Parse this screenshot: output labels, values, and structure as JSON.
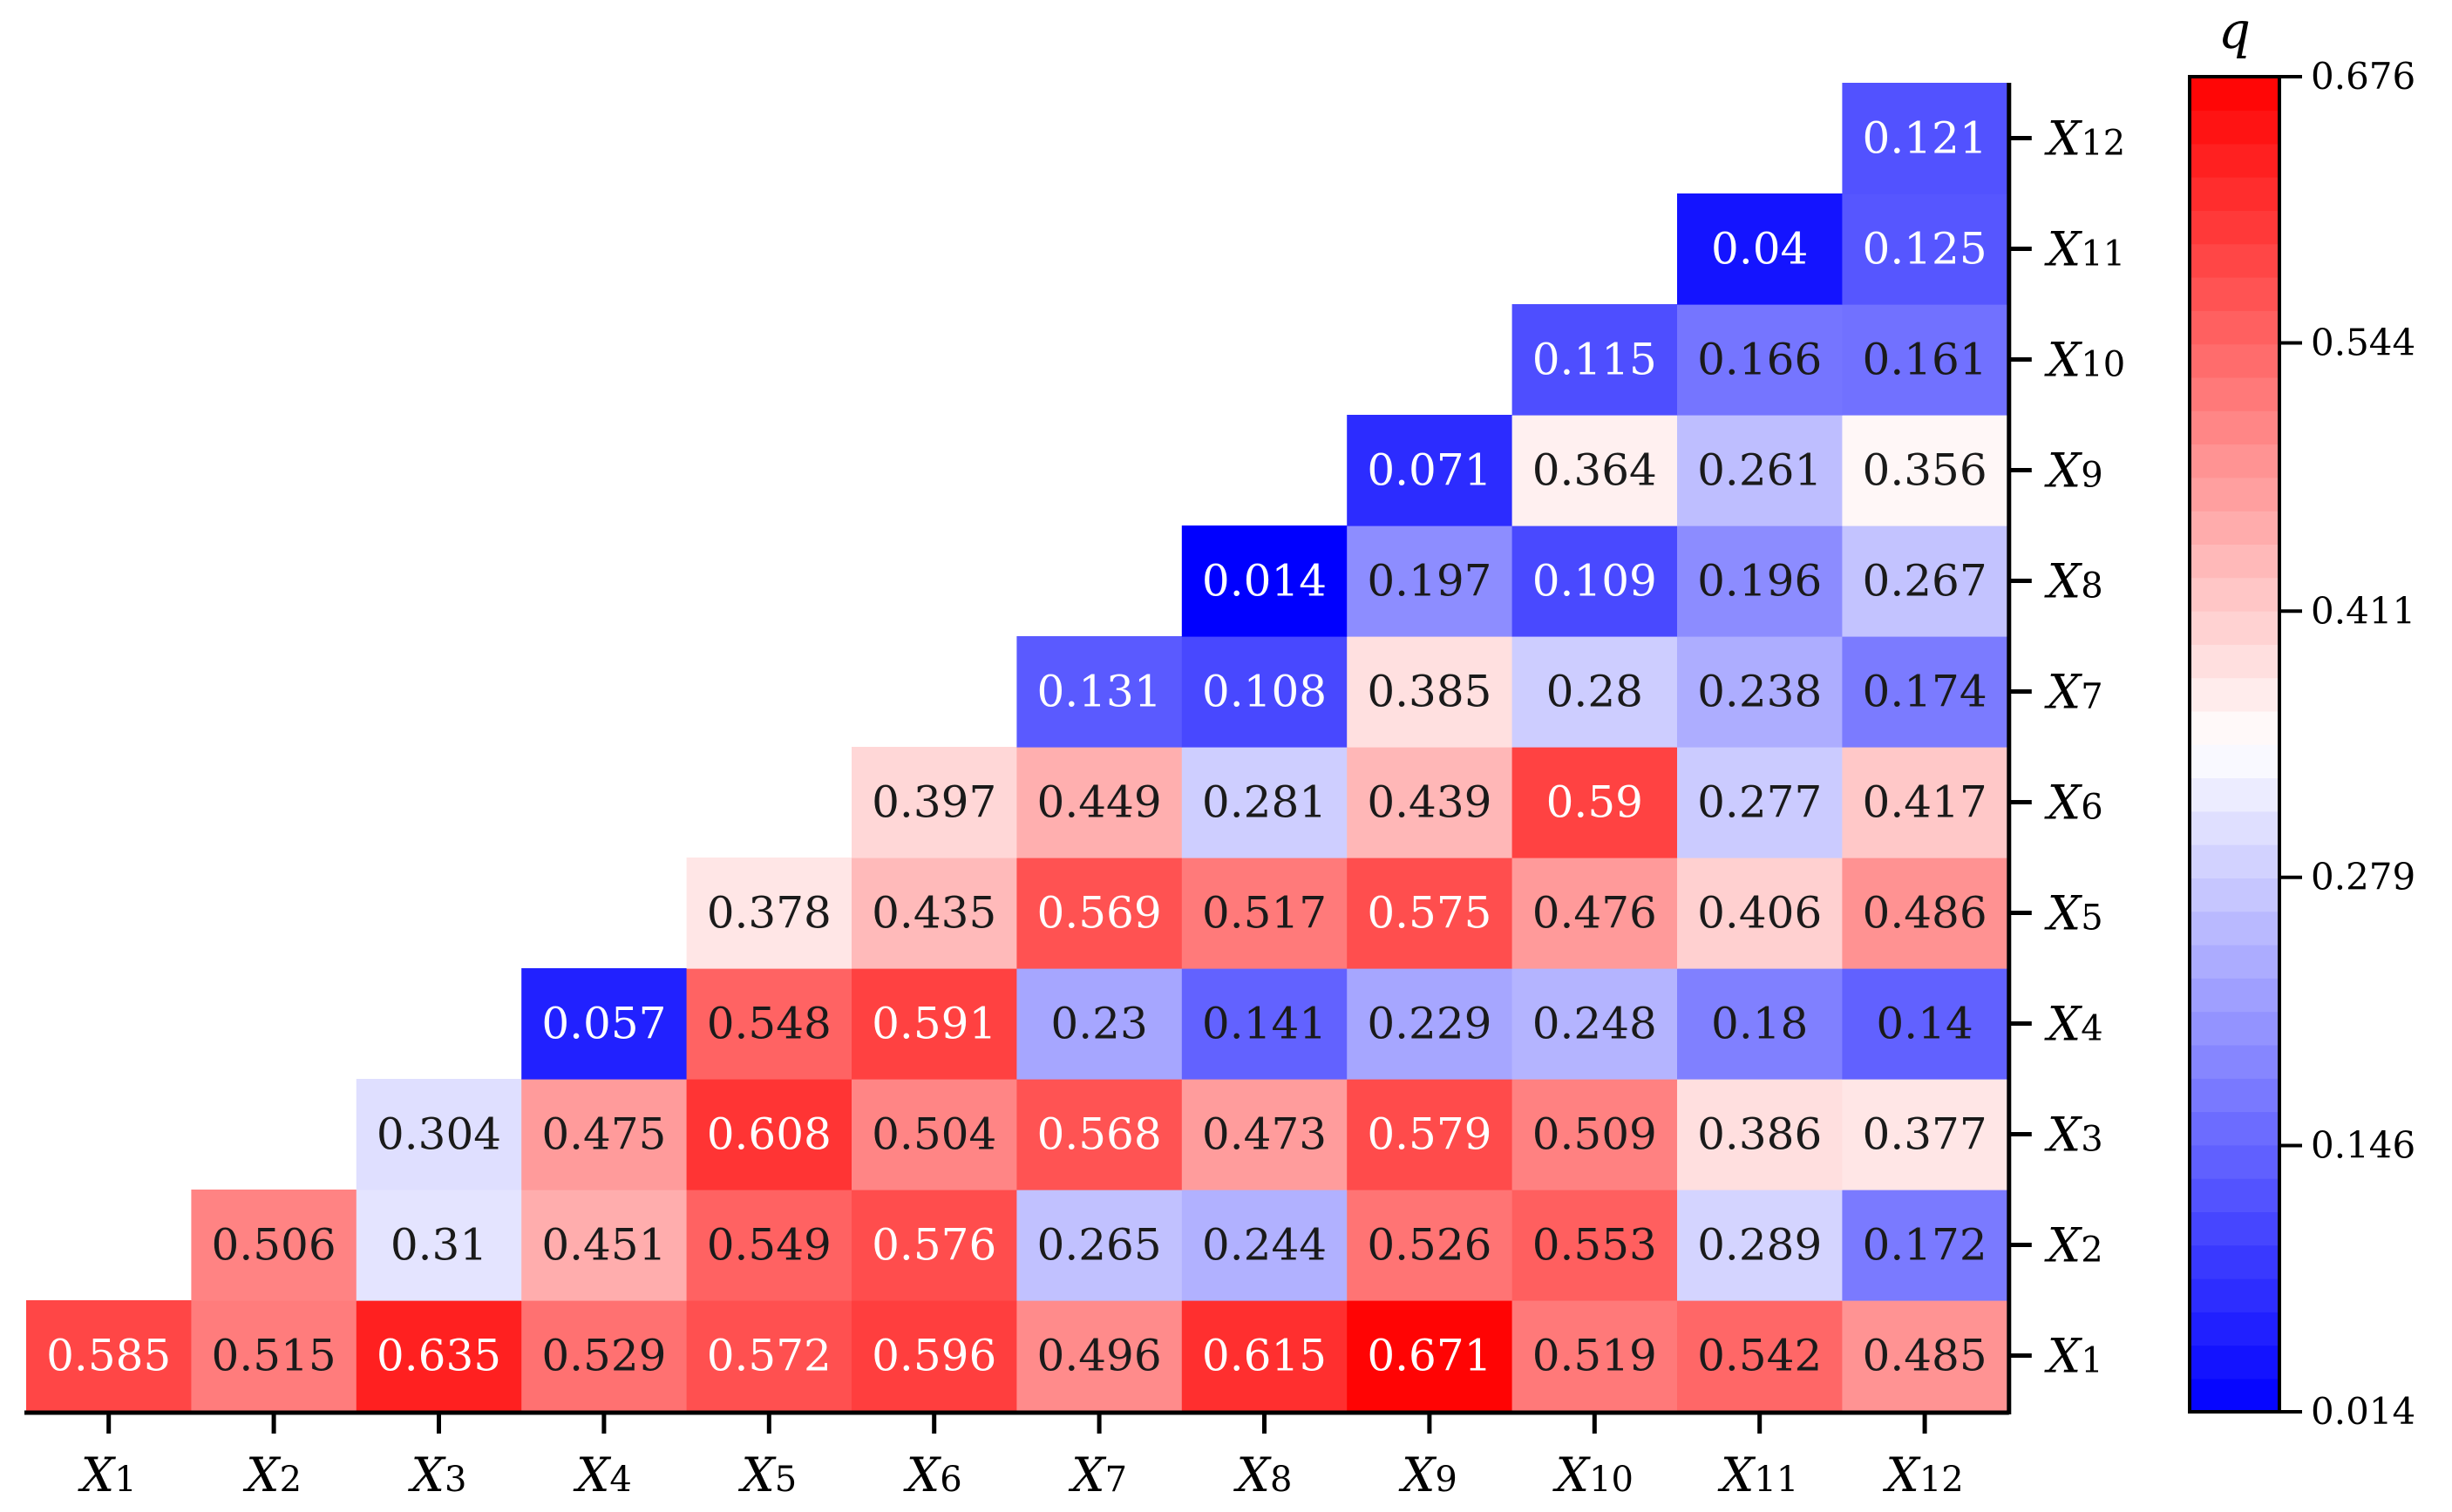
{
  "chart_data": {
    "type": "heatmap",
    "title": "",
    "xlabel": "",
    "ylabel": "",
    "triangular": "lower-right",
    "x_categories": [
      {
        "base": "X",
        "sub": "1"
      },
      {
        "base": "X",
        "sub": "2"
      },
      {
        "base": "X",
        "sub": "3"
      },
      {
        "base": "X",
        "sub": "4"
      },
      {
        "base": "X",
        "sub": "5"
      },
      {
        "base": "X",
        "sub": "6"
      },
      {
        "base": "X",
        "sub": "7"
      },
      {
        "base": "X",
        "sub": "8"
      },
      {
        "base": "X",
        "sub": "9"
      },
      {
        "base": "X",
        "sub": "10"
      },
      {
        "base": "X",
        "sub": "11"
      },
      {
        "base": "X",
        "sub": "12"
      }
    ],
    "y_categories": [
      {
        "base": "X",
        "sub": "1"
      },
      {
        "base": "X",
        "sub": "2"
      },
      {
        "base": "X",
        "sub": "3"
      },
      {
        "base": "X",
        "sub": "4"
      },
      {
        "base": "X",
        "sub": "5"
      },
      {
        "base": "X",
        "sub": "6"
      },
      {
        "base": "X",
        "sub": "7"
      },
      {
        "base": "X",
        "sub": "8"
      },
      {
        "base": "X",
        "sub": "9"
      },
      {
        "base": "X",
        "sub": "10"
      },
      {
        "base": "X",
        "sub": "11"
      },
      {
        "base": "X",
        "sub": "12"
      }
    ],
    "rows": [
      {
        "y": "X1",
        "values": [
          "0.585",
          "0.515",
          "0.635",
          "0.529",
          "0.572",
          "0.596",
          "0.496",
          "0.615",
          "0.671",
          "0.519",
          "0.542",
          "0.485"
        ]
      },
      {
        "y": "X2",
        "values": [
          null,
          "0.506",
          "0.31",
          "0.451",
          "0.549",
          "0.576",
          "0.265",
          "0.244",
          "0.526",
          "0.553",
          "0.289",
          "0.172"
        ]
      },
      {
        "y": "X3",
        "values": [
          null,
          null,
          "0.304",
          "0.475",
          "0.608",
          "0.504",
          "0.568",
          "0.473",
          "0.579",
          "0.509",
          "0.386",
          "0.377"
        ]
      },
      {
        "y": "X4",
        "values": [
          null,
          null,
          null,
          "0.057",
          "0.548",
          "0.591",
          "0.23",
          "0.141",
          "0.229",
          "0.248",
          "0.18",
          "0.14"
        ]
      },
      {
        "y": "X5",
        "values": [
          null,
          null,
          null,
          null,
          "0.378",
          "0.435",
          "0.569",
          "0.517",
          "0.575",
          "0.476",
          "0.406",
          "0.486"
        ]
      },
      {
        "y": "X6",
        "values": [
          null,
          null,
          null,
          null,
          null,
          "0.397",
          "0.449",
          "0.281",
          "0.439",
          "0.59",
          "0.277",
          "0.417"
        ]
      },
      {
        "y": "X7",
        "values": [
          null,
          null,
          null,
          null,
          null,
          null,
          "0.131",
          "0.108",
          "0.385",
          "0.28",
          "0.238",
          "0.174"
        ]
      },
      {
        "y": "X8",
        "values": [
          null,
          null,
          null,
          null,
          null,
          null,
          null,
          "0.014",
          "0.197",
          "0.109",
          "0.196",
          "0.267"
        ]
      },
      {
        "y": "X9",
        "values": [
          null,
          null,
          null,
          null,
          null,
          null,
          null,
          null,
          "0.071",
          "0.364",
          "0.261",
          "0.356"
        ]
      },
      {
        "y": "X10",
        "values": [
          null,
          null,
          null,
          null,
          null,
          null,
          null,
          null,
          null,
          "0.115",
          "0.166",
          "0.161"
        ]
      },
      {
        "y": "X11",
        "values": [
          null,
          null,
          null,
          null,
          null,
          null,
          null,
          null,
          null,
          null,
          "0.04",
          "0.125"
        ]
      },
      {
        "y": "X12",
        "values": [
          null,
          null,
          null,
          null,
          null,
          null,
          null,
          null,
          null,
          null,
          null,
          "0.121"
        ]
      }
    ],
    "colorbar": {
      "title": "q",
      "min": 0.014,
      "max": 0.676,
      "ticks": [
        "0.014",
        "0.146",
        "0.279",
        "0.411",
        "0.544",
        "0.676"
      ],
      "colors": {
        "low": "#0000ff",
        "mid": "#ffffff",
        "high": "#ff0000"
      }
    },
    "grid": false,
    "legend": "right"
  }
}
